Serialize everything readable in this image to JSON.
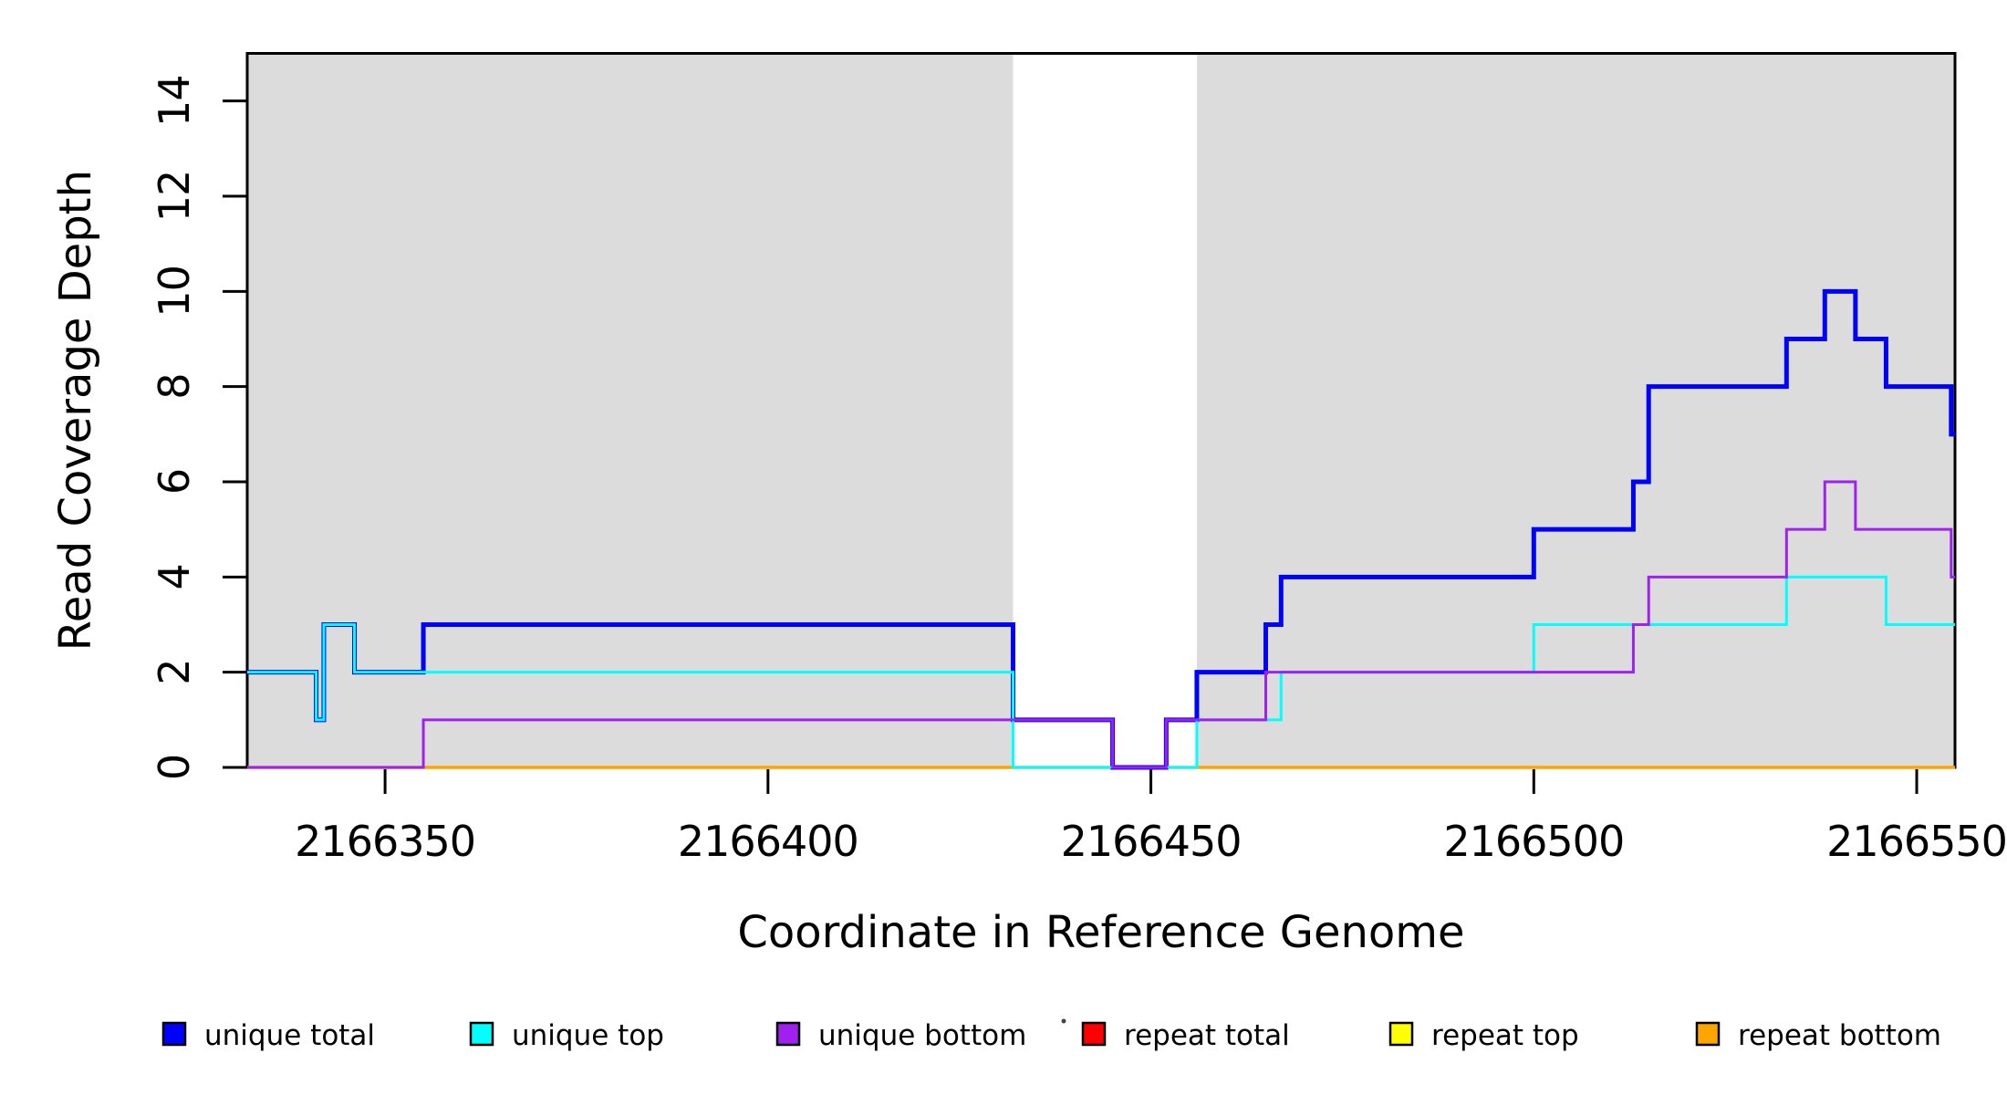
{
  "figure": {
    "xlabel": "Coordinate in Reference Genome",
    "ylabel": "Read Coverage Depth"
  },
  "chart_data": {
    "type": "line",
    "subtype": "step",
    "title": "",
    "xlabel": "Coordinate in Reference Genome",
    "ylabel": "Read Coverage Depth",
    "xlim": [
      2166332,
      2166555
    ],
    "ylim": [
      0,
      15
    ],
    "x_ticks": [
      2166350,
      2166400,
      2166450,
      2166500,
      2166550
    ],
    "y_ticks": [
      0,
      2,
      4,
      6,
      8,
      10,
      12,
      14
    ],
    "grid": false,
    "plot_background": "#FFFFFF",
    "shaded_regions": {
      "color": "#DCDCDC",
      "ranges": [
        [
          2166332,
          2166432
        ],
        [
          2166456,
          2166555
        ]
      ]
    },
    "x_end": 2166555,
    "series": [
      {
        "name": "repeat total",
        "color": "#FF0000",
        "width": 3,
        "points": [
          [
            2166332,
            0
          ]
        ]
      },
      {
        "name": "repeat top",
        "color": "#FFFF00",
        "width": 3,
        "points": [
          [
            2166332,
            0
          ]
        ]
      },
      {
        "name": "repeat bottom",
        "color": "#FFA500",
        "width": 3.5,
        "points": [
          [
            2166332,
            0
          ]
        ]
      },
      {
        "name": "unique total",
        "color": "#0000FF",
        "width": 5,
        "points": [
          [
            2166332,
            2
          ],
          [
            2166341,
            1
          ],
          [
            2166342,
            3
          ],
          [
            2166346,
            2
          ],
          [
            2166355,
            3
          ],
          [
            2166432,
            1
          ],
          [
            2166445,
            0
          ],
          [
            2166452,
            1
          ],
          [
            2166456,
            2
          ],
          [
            2166465,
            3
          ],
          [
            2166467,
            4
          ],
          [
            2166500,
            5
          ],
          [
            2166513,
            6
          ],
          [
            2166515,
            8
          ],
          [
            2166533,
            9
          ],
          [
            2166538,
            10
          ],
          [
            2166542,
            9
          ],
          [
            2166546,
            8
          ],
          [
            2166554.5,
            7
          ]
        ]
      },
      {
        "name": "unique top",
        "color": "#00FFFF",
        "width": 3,
        "points": [
          [
            2166332,
            2
          ],
          [
            2166341,
            1
          ],
          [
            2166342,
            3
          ],
          [
            2166346,
            2
          ],
          [
            2166432,
            0
          ],
          [
            2166456,
            1
          ],
          [
            2166467,
            2
          ],
          [
            2166500,
            3
          ],
          [
            2166533,
            4
          ],
          [
            2166546,
            3
          ]
        ]
      },
      {
        "name": "unique bottom",
        "color": "#A020F0",
        "width": 3,
        "points": [
          [
            2166332,
            0
          ],
          [
            2166355,
            1
          ],
          [
            2166445,
            0
          ],
          [
            2166452,
            1
          ],
          [
            2166465,
            2
          ],
          [
            2166513,
            3
          ],
          [
            2166515,
            4
          ],
          [
            2166533,
            5
          ],
          [
            2166538,
            6
          ],
          [
            2166542,
            5
          ],
          [
            2166554.5,
            4
          ]
        ]
      }
    ],
    "legend": {
      "position": "bottom",
      "items": [
        {
          "label": "unique total",
          "color": "#0000FF"
        },
        {
          "label": "unique top",
          "color": "#00FFFF"
        },
        {
          "label": "unique bottom",
          "color": "#A020F0"
        },
        {
          "label": "repeat total",
          "color": "#FF0000"
        },
        {
          "label": "repeat top",
          "color": "#FFFF00"
        },
        {
          "label": "repeat bottom",
          "color": "#FFA500"
        }
      ]
    }
  }
}
